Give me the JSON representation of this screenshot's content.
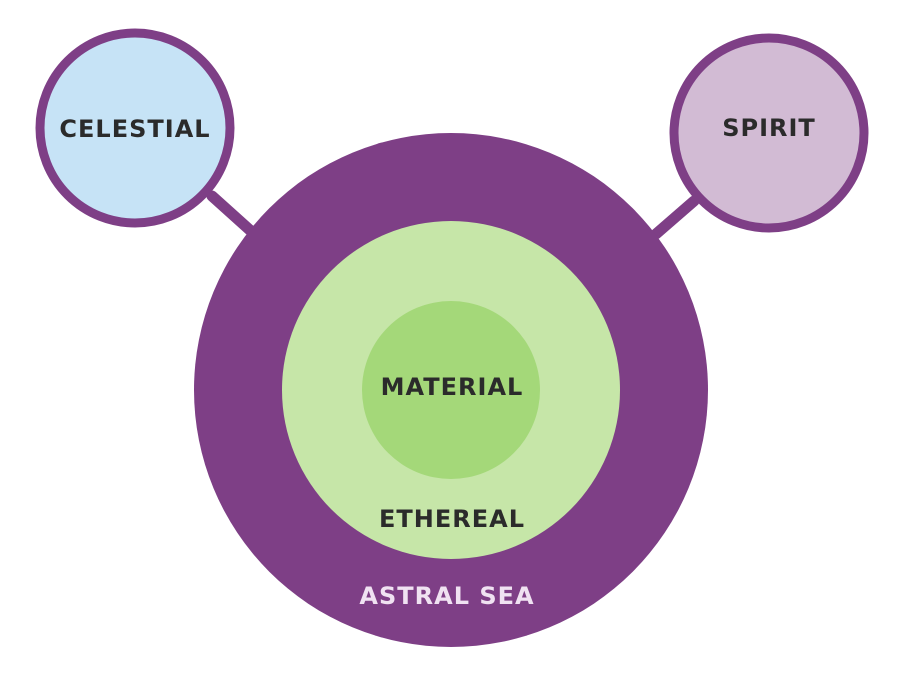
{
  "diagram": {
    "labels": {
      "astral_sea": "ASTRAL SEA",
      "ethereal": "ETHEREAL",
      "material": "MATERIAL",
      "celestial": "CELESTIAL",
      "spirit": "SPIRIT"
    },
    "colors": {
      "astral_sea": "#7e3f86",
      "ethereal": "#c6e6a8",
      "material": "#a4d879",
      "celestial_fill": "#c6e3f6",
      "spirit_fill": "#d2bbd4",
      "ring": "#7e3f86",
      "text_dark": "#2b2b2b",
      "text_light": "#f0e2f2"
    }
  }
}
